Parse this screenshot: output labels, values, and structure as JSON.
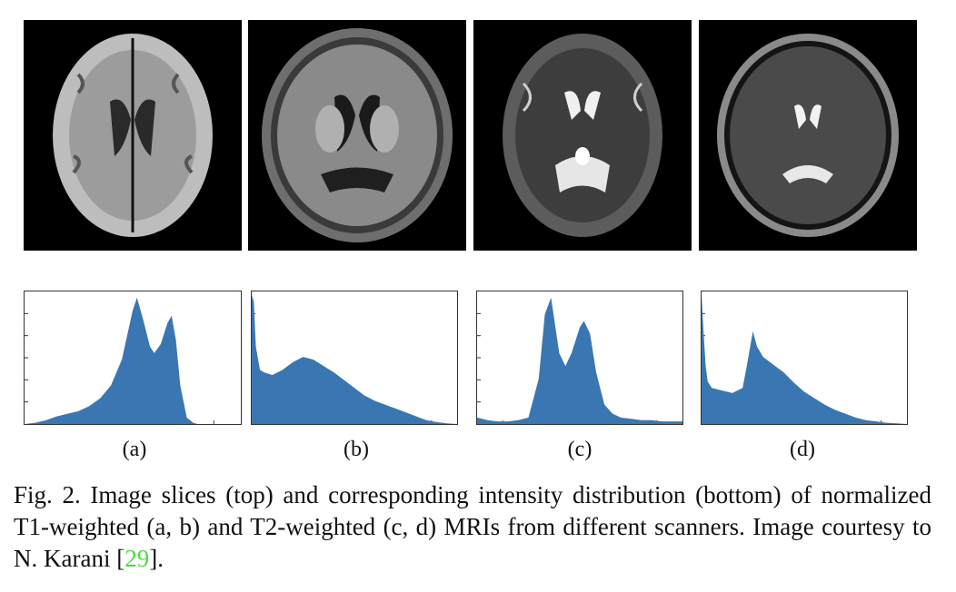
{
  "figure": {
    "panel_labels": [
      "(a)",
      "(b)",
      "(c)",
      "(d)"
    ],
    "mri_descriptions": [
      "T1 slice (a)",
      "T1 slice (b)",
      "T2 slice (c)",
      "T2 slice (d)"
    ],
    "caption": {
      "prefix": "Fig. 2.  Image slices (top) and corresponding intensity distribution (bottom) of normalized T1-weighted (a, b) and T2-weighted (c, d) MRIs from different scanners. Image courtesy to N. Karani [",
      "citation": "29",
      "suffix": "]."
    },
    "colors": {
      "histogram_fill": "#3a77b2",
      "citation_link": "#4cdd3a",
      "background": "#ffffff"
    }
  },
  "chart_data": [
    {
      "type": "area",
      "panel": "(a)",
      "x": [
        0,
        0.05,
        0.1,
        0.15,
        0.2,
        0.25,
        0.3,
        0.35,
        0.4,
        0.45,
        0.5,
        0.52,
        0.55,
        0.58,
        0.6,
        0.63,
        0.66,
        0.68,
        0.7,
        0.72,
        0.75,
        0.78,
        0.8,
        0.85,
        0.9,
        1.0
      ],
      "values": [
        0,
        0.01,
        0.03,
        0.06,
        0.08,
        0.1,
        0.14,
        0.2,
        0.3,
        0.5,
        0.88,
        0.98,
        0.8,
        0.6,
        0.55,
        0.62,
        0.78,
        0.84,
        0.65,
        0.3,
        0.05,
        0.01,
        0,
        0,
        0,
        0
      ]
    },
    {
      "type": "area",
      "panel": "(b)",
      "x": [
        0,
        0.01,
        0.02,
        0.04,
        0.06,
        0.1,
        0.15,
        0.2,
        0.25,
        0.3,
        0.35,
        0.4,
        0.45,
        0.5,
        0.55,
        0.6,
        0.65,
        0.7,
        0.75,
        0.8,
        0.85,
        0.9,
        0.95,
        1.0
      ],
      "values": [
        1.0,
        0.95,
        0.6,
        0.42,
        0.4,
        0.38,
        0.42,
        0.48,
        0.52,
        0.5,
        0.45,
        0.4,
        0.34,
        0.28,
        0.22,
        0.18,
        0.15,
        0.12,
        0.09,
        0.06,
        0.03,
        0.015,
        0.005,
        0
      ]
    },
    {
      "type": "area",
      "panel": "(c)",
      "x": [
        0,
        0.05,
        0.1,
        0.15,
        0.2,
        0.25,
        0.3,
        0.33,
        0.36,
        0.4,
        0.43,
        0.46,
        0.5,
        0.52,
        0.55,
        0.58,
        0.62,
        0.66,
        0.7,
        0.75,
        0.8,
        0.85,
        0.9,
        1.0
      ],
      "values": [
        0.05,
        0.03,
        0.02,
        0.02,
        0.03,
        0.05,
        0.35,
        0.85,
        0.98,
        0.55,
        0.45,
        0.55,
        0.75,
        0.8,
        0.7,
        0.4,
        0.15,
        0.08,
        0.05,
        0.04,
        0.03,
        0.03,
        0.02,
        0.02
      ]
    },
    {
      "type": "area",
      "panel": "(d)",
      "x": [
        0,
        0.01,
        0.02,
        0.03,
        0.05,
        0.1,
        0.15,
        0.2,
        0.22,
        0.25,
        0.27,
        0.3,
        0.35,
        0.4,
        0.45,
        0.5,
        0.55,
        0.6,
        0.65,
        0.7,
        0.75,
        0.8,
        0.85,
        0.9,
        0.95,
        1.0
      ],
      "values": [
        1.0,
        0.7,
        0.45,
        0.33,
        0.28,
        0.26,
        0.24,
        0.28,
        0.45,
        0.72,
        0.6,
        0.52,
        0.46,
        0.4,
        0.32,
        0.25,
        0.2,
        0.15,
        0.11,
        0.08,
        0.05,
        0.03,
        0.02,
        0.01,
        0.005,
        0
      ]
    }
  ]
}
